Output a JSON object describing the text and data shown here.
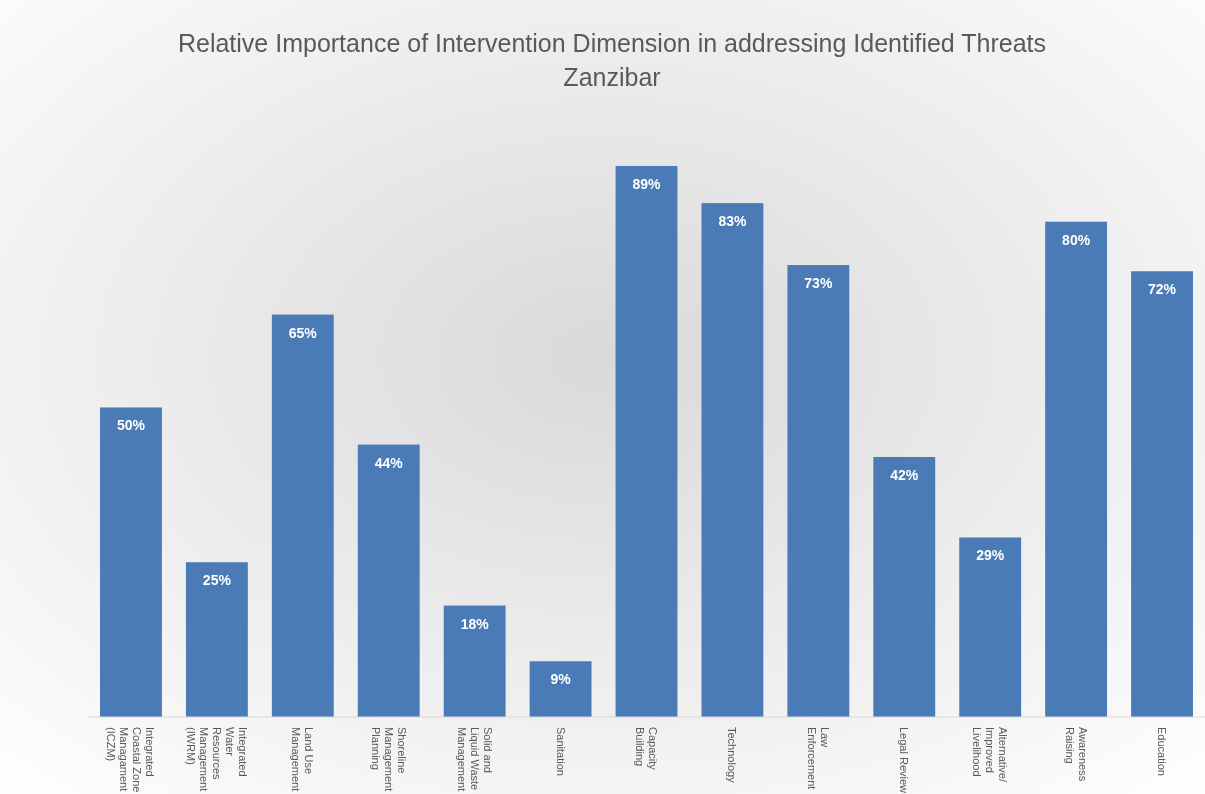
{
  "chart_data": {
    "type": "bar",
    "title": "Relative Importance of Intervention Dimension in addressing Identified Threats",
    "subtitle": "Zanzibar",
    "categories": [
      "Integrated Coastal Zone Managament (ICZM)",
      "Integrated Water Resources Management (IWRM)",
      "Land Use Management",
      "Shoreline Management Planning",
      "Solid and Liquid Waste Management",
      "Sanitation",
      "Capacity Building",
      "Technology",
      "Law Enforcement",
      "Legal Review",
      "Alternative/Improved Livelihood",
      "Awareness Raising",
      "Education"
    ],
    "values": [
      50,
      25,
      65,
      44,
      18,
      9,
      89,
      83,
      73,
      42,
      29,
      80,
      72
    ],
    "value_labels": [
      "50%",
      "25%",
      "65%",
      "44%",
      "18%",
      "9%",
      "89%",
      "83%",
      "73%",
      "42%",
      "29%",
      "80%",
      "72%"
    ],
    "color": "#4a7bb7"
  }
}
